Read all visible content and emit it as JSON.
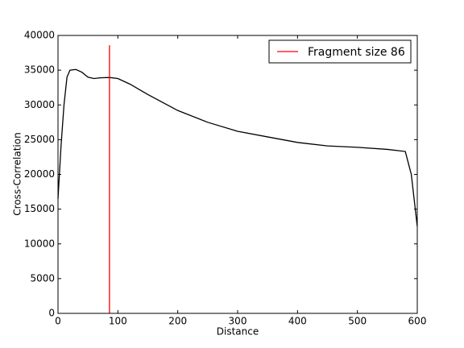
{
  "chart_data": {
    "type": "line",
    "xlabel": "Distance",
    "ylabel": "Cross-Correlation",
    "x": [
      0,
      5,
      10,
      15,
      20,
      30,
      40,
      50,
      60,
      70,
      86,
      100,
      120,
      150,
      200,
      250,
      300,
      350,
      400,
      450,
      500,
      550,
      580,
      590,
      600
    ],
    "y": [
      16500,
      24000,
      30000,
      34000,
      35000,
      35100,
      34700,
      34000,
      33800,
      33900,
      33950,
      33800,
      33000,
      31500,
      29200,
      27500,
      26200,
      25400,
      24600,
      24100,
      23900,
      23600,
      23300,
      20000,
      12500
    ],
    "color": "#000000",
    "vline": {
      "x": 86,
      "ymax": 38600,
      "label": "Fragment size 86",
      "color": "#ff0000"
    },
    "legend": "upper right",
    "xlim": [
      0,
      600
    ],
    "xticks": [
      0,
      100,
      200,
      300,
      400,
      500,
      600
    ],
    "ylim": [
      0,
      40000
    ],
    "yticks": [
      0,
      5000,
      10000,
      15000,
      20000,
      25000,
      30000,
      35000,
      40000
    ],
    "grid": false
  }
}
